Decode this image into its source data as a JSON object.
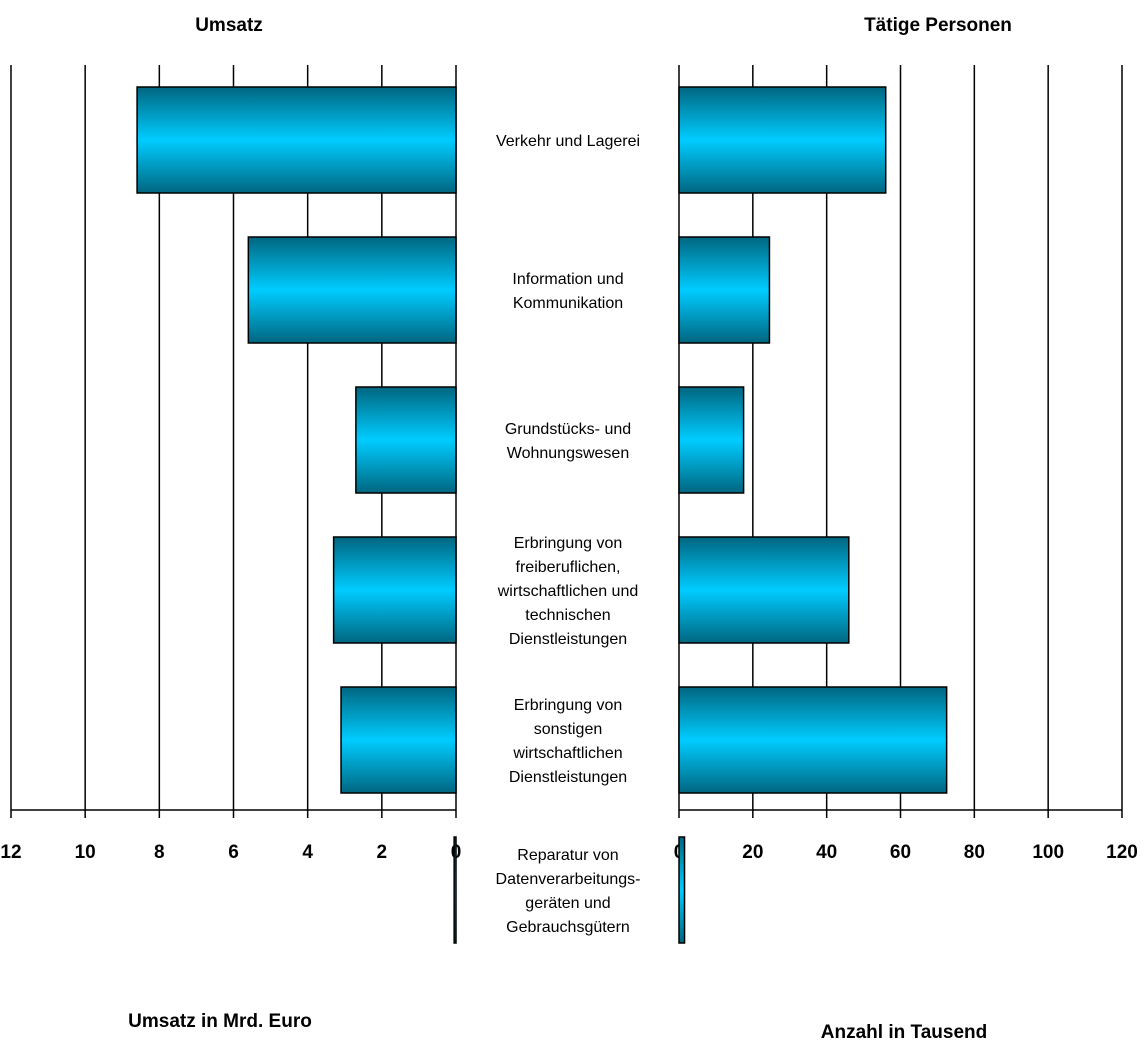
{
  "chart_data": [
    {
      "type": "bar",
      "title": "Umsatz",
      "xlabel": "Umsatz in Mrd. Euro",
      "ylabel": "",
      "orientation": "horizontal",
      "direction": "right-to-left",
      "xlim": [
        0,
        12
      ],
      "ticks": [
        "0",
        "2",
        "4",
        "6",
        "8",
        "10",
        "12"
      ],
      "grid": true,
      "categories": [
        "Verkehr und Lagerei",
        "Information und Kommunikation",
        "Grundstücks- und Wohnungswesen",
        "Erbringung von freiberuflichen, wirtschaftlichen und technischen Dienstleistungen",
        "Erbringung von sonstigen wirtschaftlichen Dienstleistungen",
        "Reparatur von Datenverarbeitungs- geräten und Gebrauchsgütern"
      ],
      "values": [
        8.6,
        5.6,
        2.7,
        3.3,
        3.1,
        0.05
      ]
    },
    {
      "type": "bar",
      "title": "Tätige Personen",
      "xlabel": "Anzahl in Tausend",
      "ylabel": "",
      "orientation": "horizontal",
      "direction": "left-to-right",
      "xlim": [
        0,
        120
      ],
      "ticks": [
        "0",
        "20",
        "40",
        "60",
        "80",
        "100",
        "120"
      ],
      "grid": true,
      "categories": [
        "Verkehr und Lagerei",
        "Information und Kommunikation",
        "Grundstücks- und Wohnungswesen",
        "Erbringung von freiberuflichen, wirtschaftlichen und technischen Dienstleistungen",
        "Erbringung von sonstigen wirtschaftlichen Dienstleistungen",
        "Reparatur von Datenverarbeitungs- geräten und Gebrauchsgütern"
      ],
      "values": [
        56,
        24.5,
        17.5,
        46,
        72.5,
        1.5
      ]
    }
  ],
  "category_labels": [
    [
      "Verkehr und Lagerei"
    ],
    [
      "Information und",
      "Kommunikation"
    ],
    [
      "Grundstücks- und",
      "Wohnungswesen"
    ],
    [
      "Erbringung von",
      "freiberuflichen,",
      "wirtschaftlichen und",
      "technischen",
      "Dienstleistungen"
    ],
    [
      "Erbringung von",
      "sonstigen",
      "wirtschaftlichen",
      "Dienstleistungen"
    ],
    [
      "Reparatur von",
      "Datenverarbeitungs-",
      "geräten und",
      "Gebrauchsgütern"
    ]
  ],
  "colors": {
    "bar_light": "#00CCFF",
    "bar_dark": "#006680",
    "bar_stroke": "#000000",
    "grid": "#000000"
  }
}
